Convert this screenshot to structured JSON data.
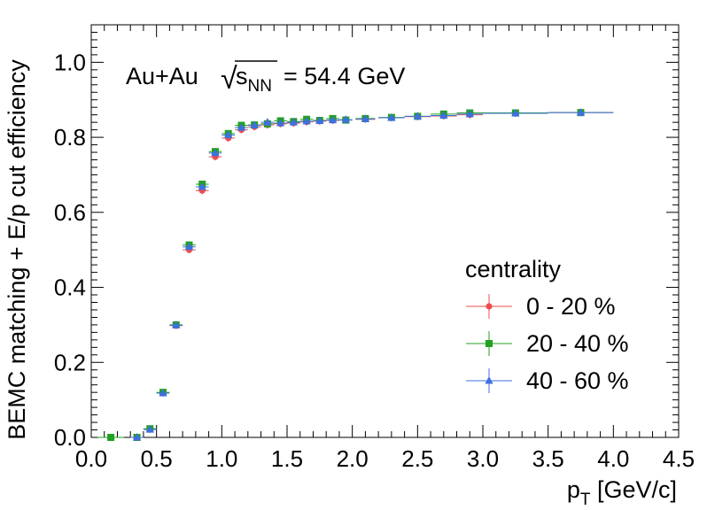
{
  "chart_data": {
    "type": "scatter",
    "xlabel": "p",
    "xlabel_sub": "T",
    "xlabel_unit": "[GeV/c]",
    "ylabel": "BEMC matching + E/p cut efficiency",
    "xlim": [
      0.0,
      4.5
    ],
    "ylim": [
      0.0,
      1.1
    ],
    "x_ticks": [
      "0.0",
      "0.5",
      "1.0",
      "1.5",
      "2.0",
      "2.5",
      "3.0",
      "3.5",
      "4.0",
      "4.5"
    ],
    "y_ticks": [
      "0.0",
      "0.2",
      "0.4",
      "0.6",
      "0.8",
      "1.0"
    ],
    "grid": false,
    "legend_position": "bottom-right",
    "annotation": {
      "system": "Au+Au",
      "sqrt_symbol": "√",
      "s": "s",
      "s_sub": "NN",
      "energy": "= 54.4 GeV"
    },
    "legend_title": "centrality",
    "series": [
      {
        "name": "0 - 20 %",
        "color": "#ee4c4c",
        "marker": "circle",
        "points": [
          {
            "x": 0.35,
            "y": 0.0
          },
          {
            "x": 0.45,
            "y": 0.022
          },
          {
            "x": 0.55,
            "y": 0.118
          },
          {
            "x": 0.65,
            "y": 0.298
          },
          {
            "x": 0.75,
            "y": 0.5
          },
          {
            "x": 0.85,
            "y": 0.658
          },
          {
            "x": 0.95,
            "y": 0.748
          },
          {
            "x": 1.05,
            "y": 0.798
          },
          {
            "x": 1.15,
            "y": 0.82
          },
          {
            "x": 1.25,
            "y": 0.828
          },
          {
            "x": 1.35,
            "y": 0.833
          },
          {
            "x": 1.45,
            "y": 0.836
          },
          {
            "x": 1.55,
            "y": 0.838
          },
          {
            "x": 1.65,
            "y": 0.841
          },
          {
            "x": 1.75,
            "y": 0.843
          },
          {
            "x": 1.85,
            "y": 0.845
          },
          {
            "x": 1.95,
            "y": 0.846
          },
          {
            "x": 2.1,
            "y": 0.848
          },
          {
            "x": 2.3,
            "y": 0.852
          },
          {
            "x": 2.5,
            "y": 0.855
          },
          {
            "x": 2.7,
            "y": 0.857
          },
          {
            "x": 2.9,
            "y": 0.86
          },
          {
            "x": 3.25,
            "y": 0.864
          },
          {
            "x": 3.75,
            "y": 0.866
          }
        ]
      },
      {
        "name": "20 - 40 %",
        "color": "#22a022",
        "marker": "square",
        "points": [
          {
            "x": 0.15,
            "y": 0.0
          },
          {
            "x": 0.35,
            "y": 0.0
          },
          {
            "x": 0.45,
            "y": 0.023
          },
          {
            "x": 0.55,
            "y": 0.12
          },
          {
            "x": 0.65,
            "y": 0.3
          },
          {
            "x": 0.75,
            "y": 0.513
          },
          {
            "x": 0.85,
            "y": 0.675
          },
          {
            "x": 0.95,
            "y": 0.762
          },
          {
            "x": 1.05,
            "y": 0.81
          },
          {
            "x": 1.15,
            "y": 0.832
          },
          {
            "x": 1.25,
            "y": 0.833
          },
          {
            "x": 1.35,
            "y": 0.836
          },
          {
            "x": 1.45,
            "y": 0.844
          },
          {
            "x": 1.55,
            "y": 0.842
          },
          {
            "x": 1.65,
            "y": 0.848
          },
          {
            "x": 1.75,
            "y": 0.845
          },
          {
            "x": 1.85,
            "y": 0.85
          },
          {
            "x": 1.95,
            "y": 0.846
          },
          {
            "x": 2.1,
            "y": 0.85
          },
          {
            "x": 2.3,
            "y": 0.853
          },
          {
            "x": 2.5,
            "y": 0.856
          },
          {
            "x": 2.7,
            "y": 0.862
          },
          {
            "x": 2.9,
            "y": 0.865
          },
          {
            "x": 3.25,
            "y": 0.865
          },
          {
            "x": 3.75,
            "y": 0.866
          }
        ]
      },
      {
        "name": "40 - 60 %",
        "color": "#3f6fe0",
        "marker": "triangle",
        "points": [
          {
            "x": 0.35,
            "y": 0.0
          },
          {
            "x": 0.45,
            "y": 0.021
          },
          {
            "x": 0.55,
            "y": 0.118
          },
          {
            "x": 0.65,
            "y": 0.299
          },
          {
            "x": 0.75,
            "y": 0.508
          },
          {
            "x": 0.85,
            "y": 0.668
          },
          {
            "x": 0.95,
            "y": 0.758
          },
          {
            "x": 1.05,
            "y": 0.806
          },
          {
            "x": 1.15,
            "y": 0.826
          },
          {
            "x": 1.25,
            "y": 0.832
          },
          {
            "x": 1.35,
            "y": 0.84
          },
          {
            "x": 1.45,
            "y": 0.838
          },
          {
            "x": 1.55,
            "y": 0.84
          },
          {
            "x": 1.65,
            "y": 0.843
          },
          {
            "x": 1.75,
            "y": 0.844
          },
          {
            "x": 1.85,
            "y": 0.846
          },
          {
            "x": 1.95,
            "y": 0.847
          },
          {
            "x": 2.1,
            "y": 0.849
          },
          {
            "x": 2.3,
            "y": 0.852
          },
          {
            "x": 2.5,
            "y": 0.856
          },
          {
            "x": 2.7,
            "y": 0.858
          },
          {
            "x": 2.9,
            "y": 0.862
          },
          {
            "x": 3.25,
            "y": 0.864
          },
          {
            "x": 3.75,
            "y": 0.866
          }
        ]
      }
    ]
  }
}
